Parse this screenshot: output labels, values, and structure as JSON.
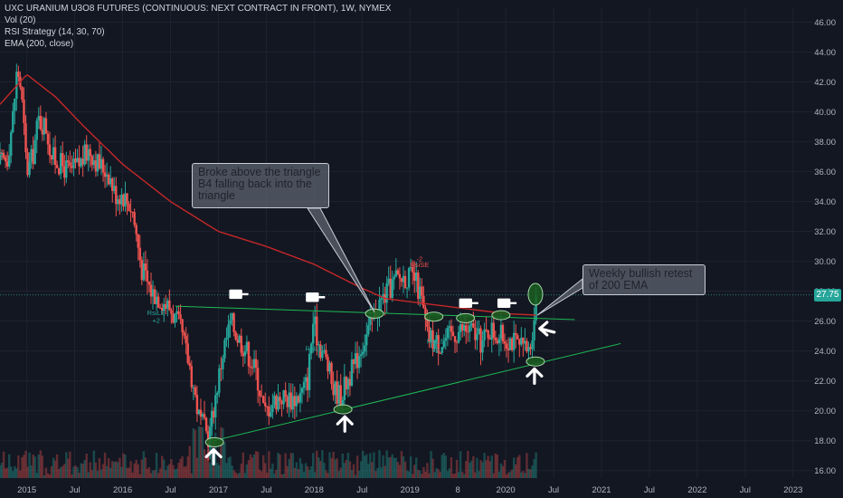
{
  "colors": {
    "background": "#131722",
    "grid": "#1f2330",
    "up": "#26a69a",
    "down": "#ef5350",
    "ema": "#c62828",
    "trendline": "#1db954",
    "marker_fill": "#1b5e20",
    "marker_stroke": "#a5d6a7",
    "text": "#b2b5be",
    "price_line": "#26a69a"
  },
  "legend": {
    "title": "UXC URANIUM U3O8 FUTURES (CONTINUOUS: NEXT CONTRACT IN FRONT), 1W, NYMEX",
    "vol": "Vol (20)",
    "rsi": "RSI Strategy (14, 30, 70)",
    "ema": "EMA (200, close)"
  },
  "annotations": {
    "breakout": "Broke above the triangle B4 falling back into the triangle",
    "retest": "Weekly bullish retest of 200 EMA"
  },
  "signals": {
    "rsi_le": "RsiLE",
    "rsi_se": "RsiSE",
    "plus2": "+2",
    "minus2": "-2"
  },
  "chart_data": {
    "type": "candlestick",
    "title": "UXC URANIUM U3O8 FUTURES (CONTINUOUS: NEXT CONTRACT IN FRONT), 1W, NYMEX",
    "ylim": [
      15.5,
      47
    ],
    "xlim": [
      2014.72,
      2023.2
    ],
    "y_ticks": [
      "16.00",
      "18.00",
      "20.00",
      "22.00",
      "24.00",
      "26.00",
      "28.00",
      "30.00",
      "32.00",
      "34.00",
      "36.00",
      "38.00",
      "40.00",
      "42.00",
      "44.00",
      "46.00"
    ],
    "x_ticks": [
      {
        "t": 2015.0,
        "label": "2015"
      },
      {
        "t": 2015.5,
        "label": "Jul"
      },
      {
        "t": 2016.0,
        "label": "2016"
      },
      {
        "t": 2016.5,
        "label": "Jul"
      },
      {
        "t": 2017.0,
        "label": "2017"
      },
      {
        "t": 2017.5,
        "label": "Jul"
      },
      {
        "t": 2018.0,
        "label": "2018"
      },
      {
        "t": 2018.5,
        "label": "Jul"
      },
      {
        "t": 2019.0,
        "label": "2019"
      },
      {
        "t": 2019.5,
        "label": "8"
      },
      {
        "t": 2020.0,
        "label": "2020"
      },
      {
        "t": 2020.5,
        "label": "Jul"
      },
      {
        "t": 2021.0,
        "label": "2021"
      },
      {
        "t": 2021.5,
        "label": "Jul"
      },
      {
        "t": 2022.0,
        "label": "2022"
      },
      {
        "t": 2022.5,
        "label": "Jul"
      },
      {
        "t": 2023.0,
        "label": "2023"
      }
    ],
    "last_price": 27.75,
    "last_price_label": "27.75",
    "close_anchors": [
      [
        2014.72,
        36.5
      ],
      [
        2014.8,
        37.0
      ],
      [
        2014.86,
        40.0
      ],
      [
        2014.9,
        43.0
      ],
      [
        2014.94,
        41.5
      ],
      [
        2015.0,
        36.0
      ],
      [
        2015.06,
        37.0
      ],
      [
        2015.12,
        39.5
      ],
      [
        2015.2,
        39.0
      ],
      [
        2015.26,
        37.0
      ],
      [
        2015.35,
        36.5
      ],
      [
        2015.45,
        36.0
      ],
      [
        2015.55,
        36.5
      ],
      [
        2015.65,
        37.5
      ],
      [
        2015.75,
        36.5
      ],
      [
        2015.85,
        36.0
      ],
      [
        2015.92,
        34.5
      ],
      [
        2016.0,
        34.5
      ],
      [
        2016.1,
        33.5
      ],
      [
        2016.2,
        29.5
      ],
      [
        2016.3,
        28.0
      ],
      [
        2016.4,
        27.5
      ],
      [
        2016.5,
        26.8
      ],
      [
        2016.6,
        25.5
      ],
      [
        2016.7,
        23.0
      ],
      [
        2016.8,
        19.5
      ],
      [
        2016.9,
        18.2
      ],
      [
        2016.97,
        21.0
      ],
      [
        2017.05,
        24.0
      ],
      [
        2017.13,
        26.0
      ],
      [
        2017.2,
        25.0
      ],
      [
        2017.3,
        24.0
      ],
      [
        2017.4,
        22.5
      ],
      [
        2017.48,
        19.8
      ],
      [
        2017.55,
        20.5
      ],
      [
        2017.65,
        21.0
      ],
      [
        2017.75,
        20.8
      ],
      [
        2017.85,
        21.0
      ],
      [
        2017.93,
        22.0
      ],
      [
        2017.99,
        26.0
      ],
      [
        2018.05,
        24.5
      ],
      [
        2018.12,
        23.5
      ],
      [
        2018.2,
        21.5
      ],
      [
        2018.28,
        21.0
      ],
      [
        2018.34,
        22.0
      ],
      [
        2018.42,
        23.0
      ],
      [
        2018.5,
        24.5
      ],
      [
        2018.58,
        25.5
      ],
      [
        2018.66,
        27.0
      ],
      [
        2018.75,
        27.8
      ],
      [
        2018.85,
        28.8
      ],
      [
        2018.95,
        29.0
      ],
      [
        2019.05,
        28.8
      ],
      [
        2019.12,
        27.5
      ],
      [
        2019.18,
        25.0
      ],
      [
        2019.3,
        24.5
      ],
      [
        2019.42,
        25.0
      ],
      [
        2019.55,
        25.5
      ],
      [
        2019.65,
        25.3
      ],
      [
        2019.75,
        24.5
      ],
      [
        2019.83,
        25.5
      ],
      [
        2019.93,
        25.0
      ],
      [
        2020.05,
        24.8
      ],
      [
        2020.15,
        24.2
      ],
      [
        2020.25,
        24.0
      ],
      [
        2020.32,
        27.75
      ]
    ],
    "ema_200": [
      [
        2014.72,
        40.5
      ],
      [
        2015.0,
        42.5
      ],
      [
        2015.3,
        41.0
      ],
      [
        2015.6,
        39.0
      ],
      [
        2016.0,
        36.5
      ],
      [
        2016.5,
        34.0
      ],
      [
        2017.0,
        32.0
      ],
      [
        2017.5,
        31.0
      ],
      [
        2018.0,
        29.8
      ],
      [
        2018.5,
        28.2
      ],
      [
        2018.75,
        27.5
      ],
      [
        2019.0,
        27.3
      ],
      [
        2019.5,
        26.9
      ],
      [
        2020.0,
        26.5
      ],
      [
        2020.32,
        26.4
      ]
    ],
    "trendline_upper": [
      [
        2016.55,
        27.0
      ],
      [
        2020.72,
        26.1
      ]
    ],
    "trendline_lower": [
      [
        2016.95,
        18.0
      ],
      [
        2021.2,
        24.5
      ]
    ],
    "markers": [
      {
        "t": 2016.96,
        "p": 17.9
      },
      {
        "t": 2018.3,
        "p": 20.1
      },
      {
        "t": 2018.63,
        "p": 26.5
      },
      {
        "t": 2019.25,
        "p": 26.3
      },
      {
        "t": 2019.58,
        "p": 26.2
      },
      {
        "t": 2019.95,
        "p": 26.4
      },
      {
        "t": 2020.31,
        "p": 23.3
      },
      {
        "t": 2020.31,
        "p": 27.8
      }
    ],
    "up_arrows": [
      {
        "t": 2016.95,
        "p": 16.8
      },
      {
        "t": 2018.32,
        "p": 19.0
      },
      {
        "t": 2020.3,
        "p": 22.2
      }
    ],
    "left_arrows": [
      {
        "t": 2020.45,
        "p": 25.5
      }
    ],
    "flags": [
      {
        "t": 2017.2,
        "p": 27.8
      },
      {
        "t": 2018.0,
        "p": 27.6
      },
      {
        "t": 2019.6,
        "p": 27.2
      },
      {
        "t": 2020.0,
        "p": 27.2
      }
    ],
    "signal_labels": [
      {
        "t": 2016.35,
        "p": 26.4,
        "text": "RsiLE",
        "color": "#26a69a"
      },
      {
        "t": 2016.35,
        "p": 25.9,
        "text": "+2",
        "color": "#26a69a"
      },
      {
        "t": 2018.0,
        "p": 24.0,
        "text": "RsiLE",
        "color": "#26a69a"
      },
      {
        "t": 2019.27,
        "p": 24.5,
        "text": "RsiLE",
        "color": "#26a69a"
      },
      {
        "t": 2019.27,
        "p": 23.9,
        "text": "+2",
        "color": "#26a69a"
      },
      {
        "t": 2019.1,
        "p": 29.6,
        "text": "RsiSE",
        "color": "#ef5350"
      },
      {
        "t": 2019.1,
        "p": 30.0,
        "text": "-2",
        "color": "#ef5350"
      },
      {
        "t": 2014.72,
        "p": 37.2,
        "text": "-2",
        "color": "#ef5350"
      },
      {
        "t": 2014.72,
        "p": 36.8,
        "text": "RsiSE",
        "color": "#ef5350"
      }
    ]
  }
}
